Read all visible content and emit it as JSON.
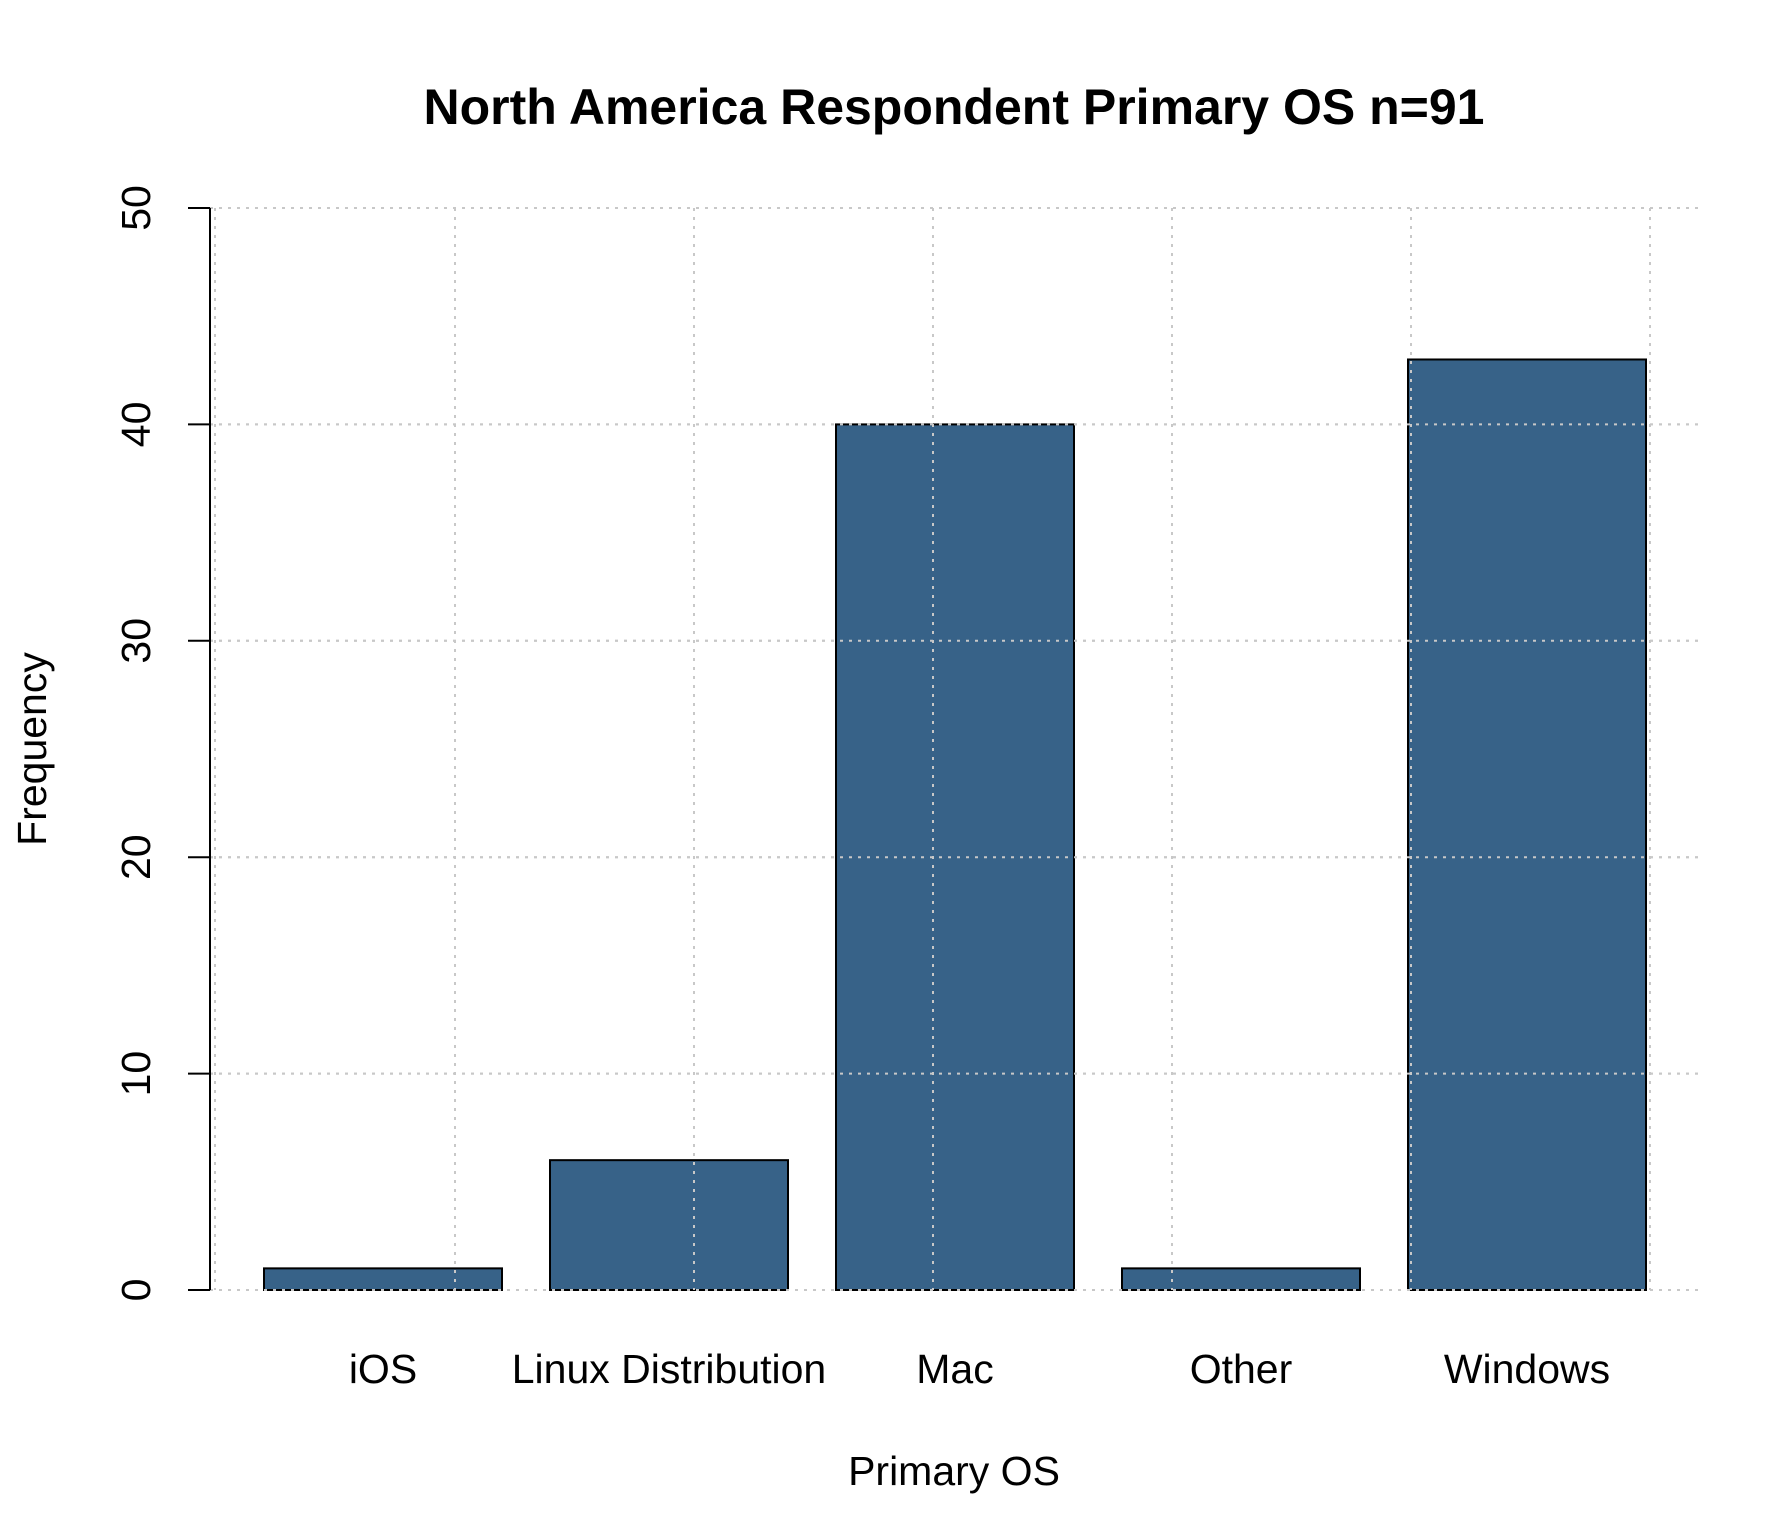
{
  "chart_data": {
    "type": "bar",
    "title": "North America Respondent Primary OS n=91",
    "xlabel": "Primary OS",
    "ylabel": "Frequency",
    "categories": [
      "iOS",
      "Linux Distribution",
      "Mac",
      "Other",
      "Windows"
    ],
    "values": [
      1,
      6,
      40,
      1,
      43
    ],
    "ylim": [
      0,
      50
    ],
    "yticks": [
      "0",
      "10",
      "20",
      "30",
      "40",
      "50"
    ],
    "grid": true,
    "bar_color": "#376288"
  }
}
